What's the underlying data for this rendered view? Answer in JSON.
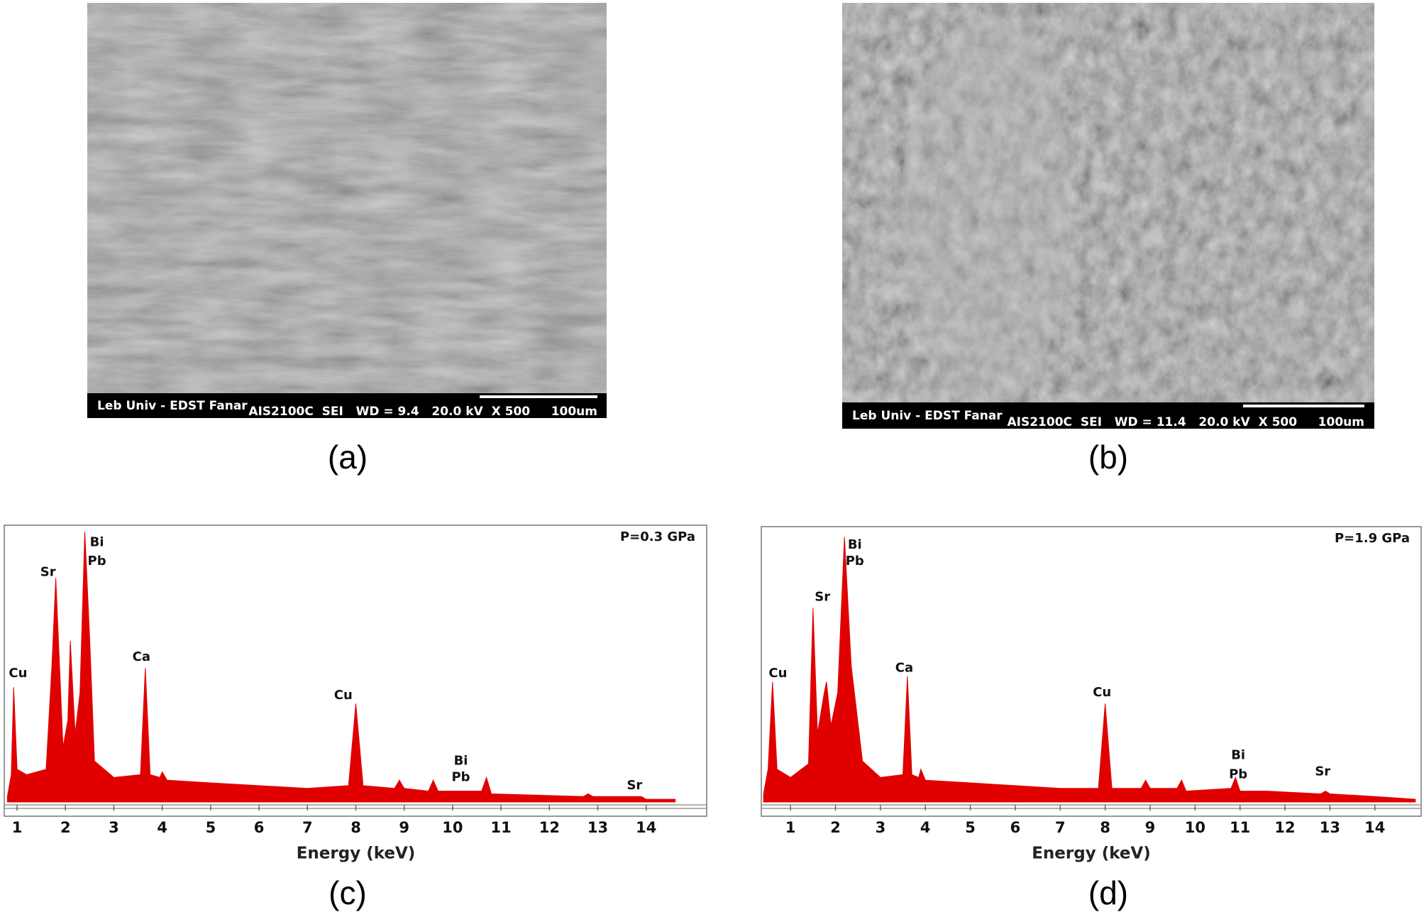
{
  "panels": [
    {
      "label": "(a)",
      "info_left": "Leb Univ - EDST Fanar",
      "info_right": "AIS2100C  SEI   WD = 9.4   20.0 kV  X 500     100um"
    },
    {
      "label": "(b)",
      "info_left": "Leb Univ - EDST Fanar",
      "info_right": "AIS2100C  SEI   WD = 11.4   20.0 kV  X 500     100um"
    },
    {
      "label": "(c)"
    },
    {
      "label": "(d)"
    }
  ],
  "chart_data": [
    {
      "type": "area",
      "subtitle": "P=0.3 GPa",
      "x_label": "Energy (keV)",
      "color": "#e00000",
      "x": [
        0.8,
        0.88,
        0.93,
        1.0,
        1.2,
        1.6,
        1.72,
        1.8,
        1.95,
        2.05,
        2.1,
        2.2,
        2.3,
        2.4,
        2.5,
        2.6,
        3.0,
        3.55,
        3.65,
        3.75,
        3.95,
        4.0,
        4.1,
        5,
        6,
        7,
        7.85,
        8.0,
        8.15,
        8.8,
        8.9,
        9.0,
        9.5,
        9.6,
        9.7,
        10.6,
        10.7,
        10.8,
        12.7,
        12.8,
        12.9,
        13.8,
        13.9,
        14.0,
        14.6
      ],
      "values": [
        2,
        10,
        42,
        12,
        10,
        12,
        50,
        82,
        20,
        30,
        59,
        25,
        40,
        99,
        60,
        15,
        9,
        10,
        49,
        10,
        9,
        11,
        8,
        7,
        6,
        5,
        6,
        36,
        6,
        5,
        8,
        5,
        4,
        8,
        4,
        4,
        9,
        3,
        2,
        3,
        2,
        2,
        2,
        1,
        1
      ],
      "xlim": [
        0.75,
        15.25
      ],
      "ylim": [
        0,
        100
      ],
      "xticks": [
        1,
        2,
        3,
        4,
        5,
        6,
        7,
        8,
        9,
        10,
        11,
        12,
        13,
        14
      ],
      "annotations": [
        {
          "text": "Cu",
          "x": 1.02,
          "y": 47
        },
        {
          "text": "Sr",
          "x": 1.64,
          "y": 84
        },
        {
          "text": "Bi",
          "x": 2.65,
          "y": 95
        },
        {
          "text": "Pb",
          "x": 2.65,
          "y": 88
        },
        {
          "text": "Ca",
          "x": 3.57,
          "y": 53
        },
        {
          "text": "Cu",
          "x": 7.74,
          "y": 39
        },
        {
          "text": "Bi",
          "x": 10.17,
          "y": 15
        },
        {
          "text": "Pb",
          "x": 10.17,
          "y": 9
        },
        {
          "text": "Sr",
          "x": 13.76,
          "y": 6
        }
      ]
    },
    {
      "type": "area",
      "subtitle": "P=1.9 GPa",
      "x_label": "Energy (keV)",
      "color": "#e00000",
      "x": [
        0.4,
        0.5,
        0.6,
        0.7,
        1.0,
        1.4,
        1.5,
        1.6,
        1.75,
        1.8,
        1.9,
        2.05,
        2.2,
        2.35,
        2.6,
        3.0,
        3.5,
        3.6,
        3.7,
        3.85,
        3.9,
        4.0,
        5,
        6,
        7,
        7.85,
        8.0,
        8.15,
        8.8,
        8.9,
        9.0,
        9.6,
        9.7,
        9.8,
        10.8,
        10.9,
        11.0,
        11.6,
        12.8,
        12.9,
        13.0,
        14.0,
        14.9
      ],
      "values": [
        3,
        12,
        44,
        12,
        9,
        14,
        71,
        25,
        40,
        44,
        28,
        40,
        97,
        50,
        15,
        9,
        10,
        46,
        10,
        9,
        12,
        8,
        7,
        6,
        5,
        5,
        36,
        5,
        5,
        8,
        5,
        5,
        8,
        4,
        5,
        9,
        4,
        4,
        3,
        4,
        3,
        2,
        1
      ],
      "xlim": [
        0.35,
        15.03
      ],
      "ylim": [
        0,
        100
      ],
      "xticks": [
        1,
        2,
        3,
        4,
        5,
        6,
        7,
        8,
        9,
        10,
        11,
        12,
        13,
        14
      ],
      "annotations": [
        {
          "text": "Cu",
          "x": 0.72,
          "y": 47
        },
        {
          "text": "Sr",
          "x": 1.71,
          "y": 75
        },
        {
          "text": "Bi",
          "x": 2.43,
          "y": 94
        },
        {
          "text": "Pb",
          "x": 2.43,
          "y": 88
        },
        {
          "text": "Ca",
          "x": 3.53,
          "y": 49
        },
        {
          "text": "Cu",
          "x": 7.93,
          "y": 40
        },
        {
          "text": "Bi",
          "x": 10.96,
          "y": 17
        },
        {
          "text": "Pb",
          "x": 10.96,
          "y": 10
        },
        {
          "text": "Sr",
          "x": 12.84,
          "y": 11
        }
      ]
    }
  ]
}
